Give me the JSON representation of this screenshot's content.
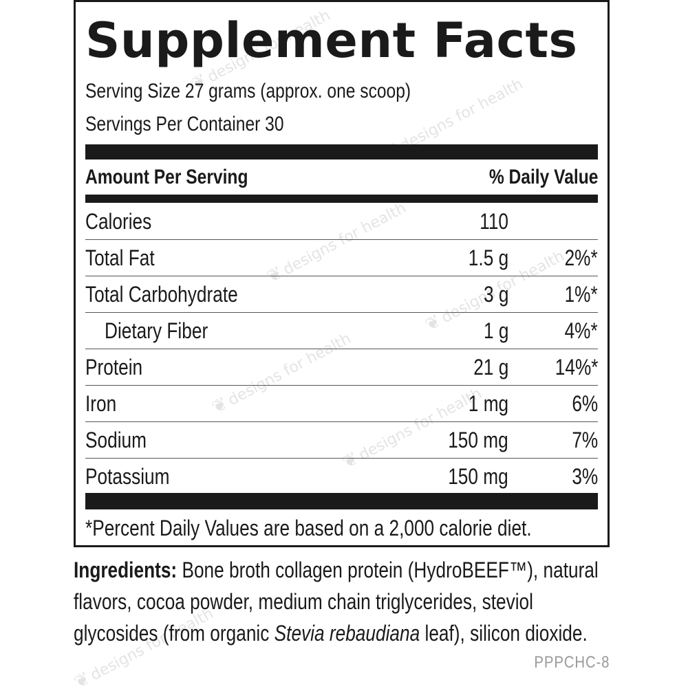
{
  "label": {
    "title": "Supplement Facts",
    "serving_size": "Serving Size 27 grams (approx. one scoop)",
    "servings_per_container": "Servings Per Container 30",
    "header_left": "Amount Per Serving",
    "header_right": "% Daily Value",
    "rows": [
      {
        "name": "Calories",
        "amount": "110",
        "dv": ""
      },
      {
        "name": "Total Fat",
        "amount": "1.5 g",
        "dv": "2%*"
      },
      {
        "name": "Total Carbohydrate",
        "amount": "3 g",
        "dv": "1%*"
      },
      {
        "name": "Dietary Fiber",
        "amount": "1 g",
        "dv": "4%*"
      },
      {
        "name": "Protein",
        "amount": "21 g",
        "dv": "14%*"
      },
      {
        "name": "Iron",
        "amount": "1 mg",
        "dv": "6%"
      },
      {
        "name": "Sodium",
        "amount": "150 mg",
        "dv": "7%"
      },
      {
        "name": "Potassium",
        "amount": "150 mg",
        "dv": "3%"
      }
    ],
    "footnote": "*Percent Daily Values are based on a 2,000 calorie diet."
  },
  "ingredients": {
    "heading": "Ingredients:",
    "line1": " Bone broth collagen protein (HydroBEEF™), natural",
    "line2": "flavors, cocoa powder, medium chain triglycerides, steviol",
    "line3_pre": "glycosides (from organic ",
    "line3_italic": "Stevia rebaudiana",
    "line3_post": " leaf), silicon dioxide."
  },
  "product_code": "PPPCHC-8",
  "watermark_text": "designs for health",
  "colors": {
    "ink": "#1a1a1a",
    "watermark": "#e4e4e4",
    "code": "#9a9a9a"
  }
}
